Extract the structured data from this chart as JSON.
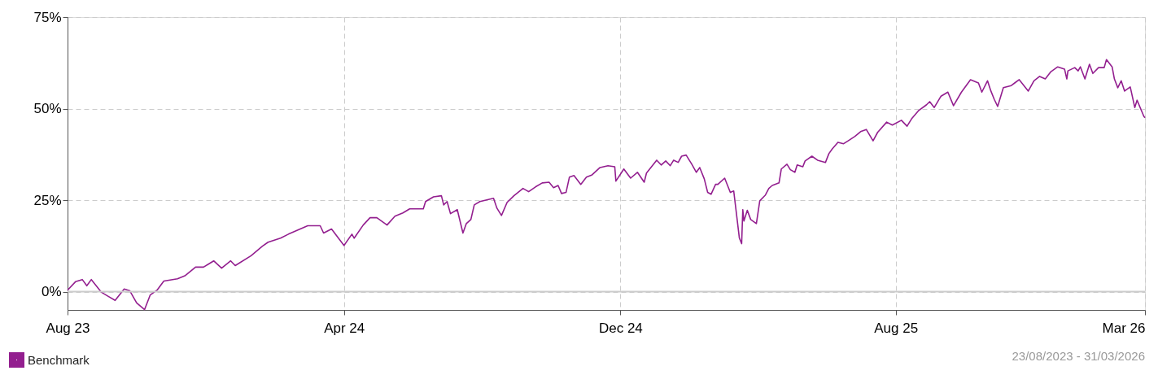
{
  "chart_data": {
    "type": "line",
    "x": [
      "2023-08-23",
      "2023-08-30",
      "2023-09-05",
      "2023-09-09",
      "2023-09-13",
      "2023-09-22",
      "2023-09-28",
      "2023-10-04",
      "2023-10-12",
      "2023-10-17",
      "2023-10-23",
      "2023-10-30",
      "2023-11-04",
      "2023-11-10",
      "2023-11-16",
      "2023-11-28",
      "2023-12-05",
      "2023-12-14",
      "2023-12-21",
      "2023-12-30",
      "2024-01-06",
      "2024-01-14",
      "2024-01-18",
      "2024-02-01",
      "2024-02-11",
      "2024-02-16",
      "2024-02-27",
      "2024-03-05",
      "2024-03-22",
      "2024-04-02",
      "2024-04-05",
      "2024-04-12",
      "2024-04-23",
      "2024-04-30",
      "2024-05-02",
      "2024-05-10",
      "2024-05-16",
      "2024-05-22",
      "2024-05-31",
      "2024-06-07",
      "2024-06-14",
      "2024-06-20",
      "2024-07-02",
      "2024-07-04",
      "2024-07-11",
      "2024-07-18",
      "2024-07-20",
      "2024-07-23",
      "2024-07-26",
      "2024-08-01",
      "2024-08-06",
      "2024-08-09",
      "2024-08-13",
      "2024-08-16",
      "2024-08-21",
      "2024-09-02",
      "2024-09-05",
      "2024-09-09",
      "2024-09-14",
      "2024-09-20",
      "2024-09-28",
      "2024-10-03",
      "2024-10-09",
      "2024-10-15",
      "2024-10-21",
      "2024-10-25",
      "2024-10-29",
      "2024-11-01",
      "2024-11-05",
      "2024-11-08",
      "2024-11-12",
      "2024-11-18",
      "2024-11-23",
      "2024-11-28",
      "2024-12-05",
      "2024-12-12",
      "2024-12-18",
      "2024-12-19",
      "2024-12-26",
      "2025-01-01",
      "2025-01-07",
      "2025-01-13",
      "2025-01-15",
      "2025-01-24",
      "2025-01-28",
      "2025-02-01",
      "2025-02-05",
      "2025-02-08",
      "2025-02-12",
      "2025-02-15",
      "2025-02-19",
      "2025-02-24",
      "2025-02-28",
      "2025-03-03",
      "2025-03-07",
      "2025-03-10",
      "2025-03-13",
      "2025-03-17",
      "2025-03-19",
      "2025-03-25",
      "2025-03-30",
      "2025-04-02",
      "2025-04-07",
      "2025-04-09",
      "2025-04-10",
      "2025-04-11",
      "2025-04-14",
      "2025-04-17",
      "2025-04-22",
      "2025-04-25",
      "2025-04-30",
      "2025-05-03",
      "2025-05-06",
      "2025-05-12",
      "2025-05-14",
      "2025-05-19",
      "2025-05-22",
      "2025-05-26",
      "2025-05-28",
      "2025-06-02",
      "2025-06-04",
      "2025-06-10",
      "2025-06-15",
      "2025-06-22",
      "2025-06-25",
      "2025-06-28",
      "2025-07-03",
      "2025-07-08",
      "2025-07-12",
      "2025-07-18",
      "2025-07-23",
      "2025-07-28",
      "2025-08-03",
      "2025-08-07",
      "2025-08-15",
      "2025-08-20",
      "2025-08-28",
      "2025-09-02",
      "2025-09-06",
      "2025-09-12",
      "2025-09-19",
      "2025-09-22",
      "2025-09-26",
      "2025-10-02",
      "2025-10-08",
      "2025-10-13",
      "2025-10-20",
      "2025-10-28",
      "2025-11-04",
      "2025-11-07",
      "2025-11-12",
      "2025-11-15",
      "2025-11-18",
      "2025-11-21",
      "2025-11-26",
      "2025-12-03",
      "2025-12-06",
      "2025-12-10",
      "2025-12-18",
      "2025-12-23",
      "2025-12-28",
      "2026-01-02",
      "2026-01-07",
      "2026-01-13",
      "2026-01-19",
      "2026-01-21",
      "2026-01-22",
      "2026-01-28",
      "2026-01-31",
      "2026-02-02",
      "2026-02-06",
      "2026-02-10",
      "2026-02-13",
      "2026-02-18",
      "2026-02-23",
      "2026-02-25",
      "2026-03-02",
      "2026-03-04",
      "2026-03-07",
      "2026-03-10",
      "2026-03-13",
      "2026-03-18",
      "2026-03-22",
      "2026-03-24",
      "2026-03-30",
      "2026-03-31"
    ],
    "series": [
      {
        "name": "Benchmark",
        "color": "#931f8f",
        "values": [
          0.4,
          2.7,
          3.3,
          1.6,
          3.3,
          -0.2,
          -1.3,
          -2.4,
          0.7,
          0.2,
          -3.1,
          -4.9,
          -0.9,
          0.4,
          2.9,
          3.5,
          4.4,
          6.7,
          6.7,
          8.4,
          6.4,
          8.4,
          7.1,
          9.8,
          12.4,
          13.5,
          14.6,
          15.7,
          18.0,
          18.0,
          16.0,
          17.1,
          12.6,
          15.7,
          14.6,
          18.2,
          20.2,
          20.2,
          18.2,
          20.6,
          21.5,
          22.6,
          22.6,
          24.6,
          25.9,
          26.2,
          23.7,
          24.6,
          21.3,
          22.4,
          16.0,
          18.6,
          19.7,
          23.7,
          24.6,
          25.5,
          22.8,
          20.8,
          24.4,
          26.2,
          28.2,
          27.3,
          28.6,
          29.7,
          29.9,
          28.4,
          29.0,
          26.8,
          27.1,
          31.3,
          31.7,
          29.3,
          31.3,
          31.9,
          33.9,
          34.4,
          34.1,
          30.2,
          33.5,
          31.0,
          32.6,
          29.9,
          32.4,
          35.9,
          34.6,
          35.7,
          34.4,
          35.9,
          35.3,
          37.0,
          37.3,
          34.8,
          32.6,
          33.9,
          30.8,
          27.1,
          26.6,
          29.3,
          29.3,
          31.0,
          27.1,
          27.5,
          14.6,
          13.1,
          22.4,
          19.3,
          22.2,
          19.7,
          18.6,
          24.8,
          26.4,
          28.2,
          29.0,
          29.7,
          33.5,
          34.8,
          33.3,
          32.6,
          34.6,
          34.1,
          35.7,
          37.0,
          35.9,
          35.3,
          37.7,
          39.0,
          40.8,
          40.4,
          41.2,
          42.4,
          43.7,
          44.3,
          41.2,
          43.5,
          46.3,
          45.5,
          46.8,
          45.2,
          47.2,
          49.4,
          51.0,
          51.9,
          50.3,
          53.4,
          54.5,
          50.8,
          54.5,
          57.9,
          57.0,
          54.5,
          57.6,
          54.8,
          52.5,
          50.6,
          55.7,
          56.3,
          57.0,
          57.9,
          54.8,
          57.6,
          58.8,
          58.1,
          60.1,
          61.4,
          60.8,
          58.1,
          60.3,
          61.2,
          60.3,
          61.4,
          58.1,
          62.1,
          59.6,
          61.2,
          61.2,
          63.4,
          61.4,
          58.1,
          55.7,
          57.6,
          54.8,
          55.9,
          50.3,
          52.3,
          47.9,
          47.5
        ]
      }
    ],
    "xlim": [
      "2023-08-23",
      "2026-03-31"
    ],
    "xticks": [
      {
        "value": "2023-08-23",
        "label": "Aug 23"
      },
      {
        "value": "2024-04-23",
        "label": "Apr 24"
      },
      {
        "value": "2024-12-23",
        "label": "Dec 24"
      },
      {
        "value": "2025-08-23",
        "label": "Aug 25"
      },
      {
        "value": "2026-03-31",
        "label": "Mar 26"
      }
    ],
    "ylim": [
      -5,
      75
    ],
    "yticks": [
      {
        "value": 0,
        "label": "0%"
      },
      {
        "value": 25,
        "label": "25%"
      },
      {
        "value": 50,
        "label": "50%"
      },
      {
        "value": 75,
        "label": "75%"
      }
    ],
    "ref_lines": [
      {
        "axis": "y",
        "value": 0,
        "color": "#cccccc",
        "line_style": "solid"
      }
    ],
    "grid": true,
    "legend": "bottom left",
    "line_style": "solid",
    "marker": "none",
    "annotations": [
      "23/08/2023 - 31/03/2026"
    ]
  }
}
